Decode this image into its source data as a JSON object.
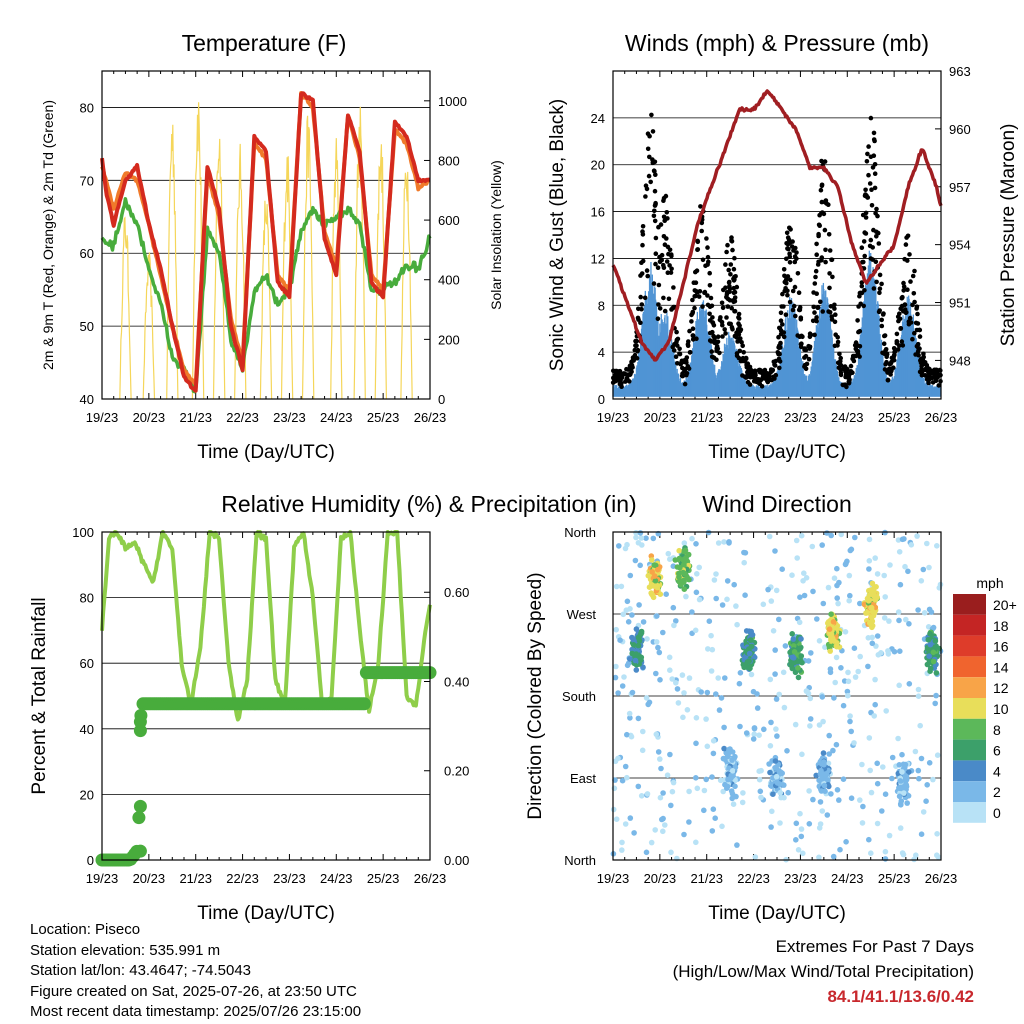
{
  "chart_data": [
    {
      "type": "line",
      "title": "Temperature (F)",
      "xlabel": "Time (Day/UTC)",
      "ylabel": "2m & 9m T (Red, Orange) & 2m Td (Green)",
      "y2label": "Solar Insolation (Yellow)",
      "x_ticks": [
        "19/23",
        "20/23",
        "21/23",
        "22/23",
        "23/23",
        "24/23",
        "25/23",
        "26/23"
      ],
      "ylim": [
        40,
        85
      ],
      "y_ticks": [
        40,
        50,
        60,
        70,
        80
      ],
      "y2lim": [
        0,
        1100
      ],
      "y2_ticks": [
        0,
        200,
        400,
        600,
        800,
        1000
      ],
      "series": [
        {
          "color": "#d42a1e",
          "x": [
            0,
            0.1,
            0.25,
            0.5,
            0.75,
            1.0,
            1.25,
            1.5,
            1.75,
            2.0,
            2.25,
            2.5,
            2.75,
            3.0,
            3.25,
            3.5,
            3.75,
            4.0,
            4.25,
            4.5,
            4.75,
            5.0,
            5.25,
            5.5,
            5.75,
            6.0,
            6.25,
            6.5,
            6.75,
            7.0
          ],
          "values": [
            73,
            68,
            64,
            70,
            72,
            64,
            58,
            50,
            43,
            41,
            72,
            66,
            50,
            44,
            76,
            74,
            56,
            54,
            82,
            81,
            62,
            57,
            79,
            74,
            56,
            54,
            78,
            76,
            70,
            70
          ]
        },
        {
          "color": "#f07a2a",
          "x": [
            0,
            0.25,
            0.5,
            0.75,
            1.0,
            1.25,
            1.5,
            1.75,
            2.0,
            2.25,
            2.5,
            2.75,
            3.0,
            3.25,
            3.5,
            3.75,
            4.0,
            4.25,
            4.5,
            4.75,
            5.0,
            5.25,
            5.5,
            5.75,
            6.0,
            6.25,
            6.5,
            6.75,
            7.0
          ],
          "values": [
            72,
            66,
            71,
            70,
            64,
            57,
            50,
            44,
            42,
            71,
            65,
            51,
            45,
            75,
            73,
            57,
            55,
            82,
            80,
            63,
            58,
            79,
            73,
            57,
            55,
            77,
            75,
            69,
            70
          ]
        },
        {
          "color": "#48ac3c",
          "x": [
            0,
            0.25,
            0.5,
            0.75,
            1.0,
            1.25,
            1.5,
            1.75,
            2.0,
            2.25,
            2.5,
            2.75,
            3.0,
            3.25,
            3.5,
            3.75,
            4.0,
            4.25,
            4.5,
            4.75,
            5.0,
            5.25,
            5.5,
            5.75,
            6.0,
            6.25,
            6.5,
            6.75,
            7.0
          ],
          "values": [
            62,
            61,
            67,
            64,
            58,
            53,
            46,
            44,
            41,
            63,
            60,
            48,
            44,
            55,
            57,
            53,
            55,
            63,
            66,
            64,
            65,
            66,
            64,
            55,
            55,
            56,
            58,
            58,
            62
          ]
        }
      ],
      "insolation": {
        "color": "#f5d65a",
        "peak_x": [
          0.5,
          1.0,
          1.5,
          2.05,
          2.5,
          2.95,
          3.5,
          3.95,
          4.4,
          5.0,
          5.5,
          5.95,
          6.5
        ],
        "peak_values": [
          650,
          500,
          1000,
          1080,
          970,
          860,
          720,
          870,
          980,
          900,
          1000,
          940,
          880
        ]
      }
    },
    {
      "type": "scatter",
      "title": "Winds (mph) & Pressure (mb)",
      "xlabel": "Time (Day/UTC)",
      "ylabel": "Sonic Wind & Gust (Blue, Black)",
      "y2label": "Station Pressure (Maroon)",
      "x_ticks": [
        "19/23",
        "20/23",
        "21/23",
        "22/23",
        "23/23",
        "24/23",
        "25/23",
        "26/23"
      ],
      "ylim": [
        0,
        28
      ],
      "y_ticks": [
        0,
        4,
        8,
        12,
        16,
        20,
        24
      ],
      "y2lim": [
        946,
        963
      ],
      "y2_ticks": [
        948,
        951,
        954,
        957,
        960,
        963
      ],
      "gust_peaks": {
        "x": [
          0.8,
          1.1,
          1.9,
          2.5,
          3.8,
          4.5,
          5.5,
          6.3
        ],
        "values": [
          24.5,
          18,
          17,
          14,
          16,
          21.5,
          25,
          15
        ]
      },
      "wind_peaks": {
        "x": [
          0.8,
          1.1,
          1.9,
          2.5,
          3.8,
          4.5,
          5.5,
          6.3
        ],
        "values": [
          12,
          8,
          9,
          6,
          9,
          10,
          13,
          9
        ]
      },
      "pressure": {
        "x": [
          0,
          0.3,
          0.6,
          0.9,
          1.2,
          1.5,
          1.8,
          2.1,
          2.4,
          2.7,
          3.0,
          3.3,
          3.6,
          3.9,
          4.2,
          4.5,
          4.8,
          5.1,
          5.4,
          5.7,
          6.0,
          6.3,
          6.6,
          6.9,
          7.0
        ],
        "values": [
          953,
          951,
          949,
          948,
          949,
          952,
          955,
          957,
          959,
          961,
          961,
          962,
          961,
          960,
          958,
          958,
          957,
          954,
          952,
          953,
          954,
          957,
          959,
          957,
          956
        ]
      }
    },
    {
      "type": "line",
      "title": "Relative Humidity (%) & Precipitation (in)",
      "xlabel": "Time (Day/UTC)",
      "ylabel": "Percent & Total Rainfall",
      "x_ticks": [
        "19/23",
        "20/23",
        "21/23",
        "22/23",
        "23/23",
        "24/23",
        "25/23",
        "26/23"
      ],
      "ylim": [
        0,
        100
      ],
      "y_ticks": [
        0,
        20,
        40,
        60,
        80,
        100
      ],
      "y2lim": [
        0,
        0.735
      ],
      "y2_ticks": [
        "0.00",
        "0.20",
        "0.40",
        "0.60"
      ],
      "humidity": {
        "color": "#8fce4a",
        "x": [
          0,
          0.15,
          0.3,
          0.5,
          0.7,
          0.9,
          1.1,
          1.3,
          1.5,
          1.7,
          1.9,
          2.1,
          2.3,
          2.5,
          2.7,
          2.9,
          3.1,
          3.3,
          3.5,
          3.7,
          3.9,
          4.1,
          4.3,
          4.5,
          4.7,
          4.9,
          5.1,
          5.3,
          5.5,
          5.7,
          5.9,
          6.1,
          6.3,
          6.5,
          6.7,
          6.9,
          7.0
        ],
        "values": [
          70,
          98,
          100,
          95,
          97,
          90,
          85,
          100,
          95,
          60,
          47,
          65,
          100,
          98,
          60,
          42,
          55,
          100,
          98,
          55,
          47,
          95,
          100,
          80,
          47,
          50,
          98,
          100,
          70,
          45,
          60,
          100,
          100,
          50,
          47,
          70,
          78
        ]
      },
      "precipitation": {
        "color": "#48ac3c",
        "x": [
          0,
          0.2,
          0.4,
          0.6,
          0.75,
          0.8,
          0.82,
          0.84,
          0.9,
          1.0,
          2.0,
          3.0,
          4.0,
          5.0,
          5.6,
          5.62,
          6.0,
          7.0
        ],
        "values": [
          0,
          0,
          0,
          0,
          0.02,
          0.12,
          0.29,
          0.35,
          0.35,
          0.35,
          0.35,
          0.35,
          0.35,
          0.35,
          0.35,
          0.42,
          0.42,
          0.42
        ]
      }
    },
    {
      "type": "scatter",
      "title": "Wind Direction",
      "xlabel": "Time (Day/UTC)",
      "ylabel": "Direction (Colored By Speed)",
      "x_ticks": [
        "19/23",
        "20/23",
        "21/23",
        "22/23",
        "23/23",
        "24/23",
        "25/23",
        "26/23"
      ],
      "y_ticks": [
        "North",
        "West",
        "South",
        "East",
        "North"
      ],
      "legend": {
        "title": "mph",
        "labels": [
          "20+",
          "18",
          "16",
          "14",
          "12",
          "10",
          "8",
          "6",
          "4",
          "2",
          "0"
        ],
        "colors": [
          "#9a1e1e",
          "#c42524",
          "#de3c2a",
          "#f0642e",
          "#f8a448",
          "#e8de5a",
          "#5cb85a",
          "#3ca06a",
          "#4a8ac8",
          "#7ab8e8",
          "#b8e2f6"
        ]
      },
      "clusters": [
        {
          "x": 0.5,
          "dir": 230,
          "speed": 5
        },
        {
          "x": 0.9,
          "dir": 310,
          "speed": 10
        },
        {
          "x": 1.5,
          "dir": 320,
          "speed": 8
        },
        {
          "x": 2.9,
          "dir": 230,
          "speed": 5
        },
        {
          "x": 3.9,
          "dir": 225,
          "speed": 6
        },
        {
          "x": 4.7,
          "dir": 250,
          "speed": 10
        },
        {
          "x": 5.5,
          "dir": 280,
          "speed": 10
        },
        {
          "x": 6.8,
          "dir": 230,
          "speed": 6
        },
        {
          "x": 2.5,
          "dir": 100,
          "speed": 2
        },
        {
          "x": 3.5,
          "dir": 90,
          "speed": 2
        },
        {
          "x": 4.5,
          "dir": 95,
          "speed": 2
        },
        {
          "x": 6.2,
          "dir": 85,
          "speed": 2
        }
      ]
    }
  ],
  "station_info": {
    "location": "Location: Piseco",
    "elevation": "Station elevation: 535.991 m",
    "latlon": "Station lat/lon: 43.4647; -74.5043",
    "created": "Figure created on Sat, 2025-07-26, at 23:50 UTC",
    "recent": "Most recent data timestamp: 2025/07/26 23:15:00"
  },
  "extremes": {
    "title": "Extremes For Past 7 Days",
    "subtitle": "(High/Low/Max Wind/Total Precipitation)",
    "values": "84.1/41.1/13.6/0.42"
  }
}
